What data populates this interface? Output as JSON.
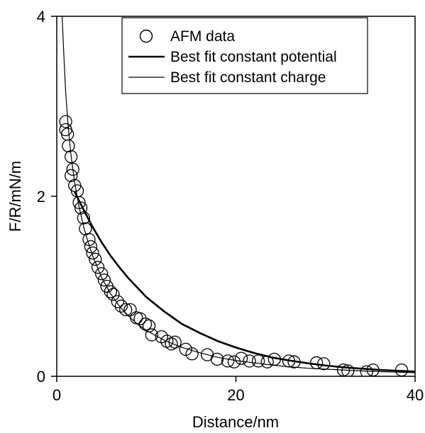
{
  "chart_data": {
    "type": "scatter",
    "xlabel": "Distance/nm",
    "ylabel": "F/R/mN/m",
    "xlim": [
      0,
      40
    ],
    "ylim": [
      0,
      4
    ],
    "xticks": [
      0,
      20,
      40
    ],
    "yticks": [
      0,
      2,
      4
    ],
    "grid": false,
    "legend_position": "top-right",
    "series": [
      {
        "name": "AFM data",
        "kind": "markers",
        "marker": "open-circle",
        "points": [
          [
            1.0,
            2.83
          ],
          [
            1.0,
            2.74
          ],
          [
            1.2,
            2.69
          ],
          [
            1.3,
            2.56
          ],
          [
            1.6,
            2.44
          ],
          [
            1.6,
            2.23
          ],
          [
            1.8,
            2.3
          ],
          [
            2.0,
            2.12
          ],
          [
            2.3,
            2.06
          ],
          [
            2.5,
            1.93
          ],
          [
            2.7,
            1.87
          ],
          [
            3.0,
            1.76
          ],
          [
            3.2,
            1.64
          ],
          [
            3.6,
            1.52
          ],
          [
            3.8,
            1.44
          ],
          [
            4.0,
            1.37
          ],
          [
            4.3,
            1.3
          ],
          [
            4.6,
            1.21
          ],
          [
            5.0,
            1.14
          ],
          [
            5.3,
            1.07
          ],
          [
            5.6,
            1.0
          ],
          [
            6.0,
            0.94
          ],
          [
            6.3,
            0.91
          ],
          [
            6.8,
            0.83
          ],
          [
            7.2,
            0.78
          ],
          [
            7.7,
            0.74
          ],
          [
            8.2,
            0.74
          ],
          [
            8.9,
            0.65
          ],
          [
            9.3,
            0.64
          ],
          [
            9.9,
            0.58
          ],
          [
            10.3,
            0.56
          ],
          [
            10.6,
            0.46
          ],
          [
            11.7,
            0.44
          ],
          [
            12.3,
            0.39
          ],
          [
            12.8,
            0.36
          ],
          [
            13.2,
            0.38
          ],
          [
            14.4,
            0.3
          ],
          [
            15.1,
            0.25
          ],
          [
            16.8,
            0.24
          ],
          [
            17.9,
            0.19
          ],
          [
            19.1,
            0.17
          ],
          [
            19.8,
            0.16
          ],
          [
            20.6,
            0.2
          ],
          [
            21.5,
            0.17
          ],
          [
            22.5,
            0.17
          ],
          [
            23.5,
            0.16
          ],
          [
            24.3,
            0.19
          ],
          [
            25.9,
            0.17
          ],
          [
            26.5,
            0.16
          ],
          [
            29.0,
            0.15
          ],
          [
            29.8,
            0.14
          ],
          [
            32.0,
            0.07
          ],
          [
            32.5,
            0.06
          ],
          [
            34.6,
            0.05
          ],
          [
            35.3,
            0.07
          ],
          [
            38.5,
            0.07
          ]
        ]
      },
      {
        "name": "Best fit constant potential",
        "kind": "line",
        "color": "#000000",
        "line_width": "thick",
        "points": [
          [
            2.0,
            2.05
          ],
          [
            3,
            1.85
          ],
          [
            4,
            1.66
          ],
          [
            5,
            1.49
          ],
          [
            6,
            1.34
          ],
          [
            7,
            1.21
          ],
          [
            8,
            1.09
          ],
          [
            10,
            0.88
          ],
          [
            12,
            0.72
          ],
          [
            14,
            0.58
          ],
          [
            16,
            0.48
          ],
          [
            18,
            0.39
          ],
          [
            20,
            0.32
          ],
          [
            22,
            0.26
          ],
          [
            24,
            0.21
          ],
          [
            26,
            0.175
          ],
          [
            28,
            0.145
          ],
          [
            30,
            0.12
          ],
          [
            32,
            0.1
          ],
          [
            34,
            0.085
          ],
          [
            36,
            0.072
          ],
          [
            38,
            0.062
          ],
          [
            40,
            0.053
          ]
        ]
      },
      {
        "name": "Best fit constant charge",
        "kind": "line",
        "color": "#000000",
        "line_width": "thin",
        "points": [
          [
            0.6,
            4.0
          ],
          [
            0.8,
            3.55
          ],
          [
            1.0,
            3.15
          ],
          [
            1.3,
            2.75
          ],
          [
            1.6,
            2.45
          ],
          [
            2.0,
            2.15
          ],
          [
            2.5,
            1.88
          ],
          [
            3,
            1.66
          ],
          [
            3.5,
            1.49
          ],
          [
            4,
            1.34
          ],
          [
            5,
            1.1
          ],
          [
            6,
            0.92
          ],
          [
            7,
            0.78
          ],
          [
            8,
            0.67
          ],
          [
            9,
            0.58
          ],
          [
            10,
            0.51
          ],
          [
            12,
            0.4
          ],
          [
            14,
            0.32
          ],
          [
            16,
            0.26
          ],
          [
            18,
            0.21
          ],
          [
            20,
            0.175
          ],
          [
            22,
            0.15
          ],
          [
            24,
            0.125
          ],
          [
            26,
            0.105
          ],
          [
            28,
            0.09
          ],
          [
            30,
            0.08
          ],
          [
            32,
            0.07
          ],
          [
            34,
            0.06
          ],
          [
            36,
            0.052
          ],
          [
            38,
            0.046
          ],
          [
            40,
            0.04
          ]
        ]
      }
    ]
  }
}
